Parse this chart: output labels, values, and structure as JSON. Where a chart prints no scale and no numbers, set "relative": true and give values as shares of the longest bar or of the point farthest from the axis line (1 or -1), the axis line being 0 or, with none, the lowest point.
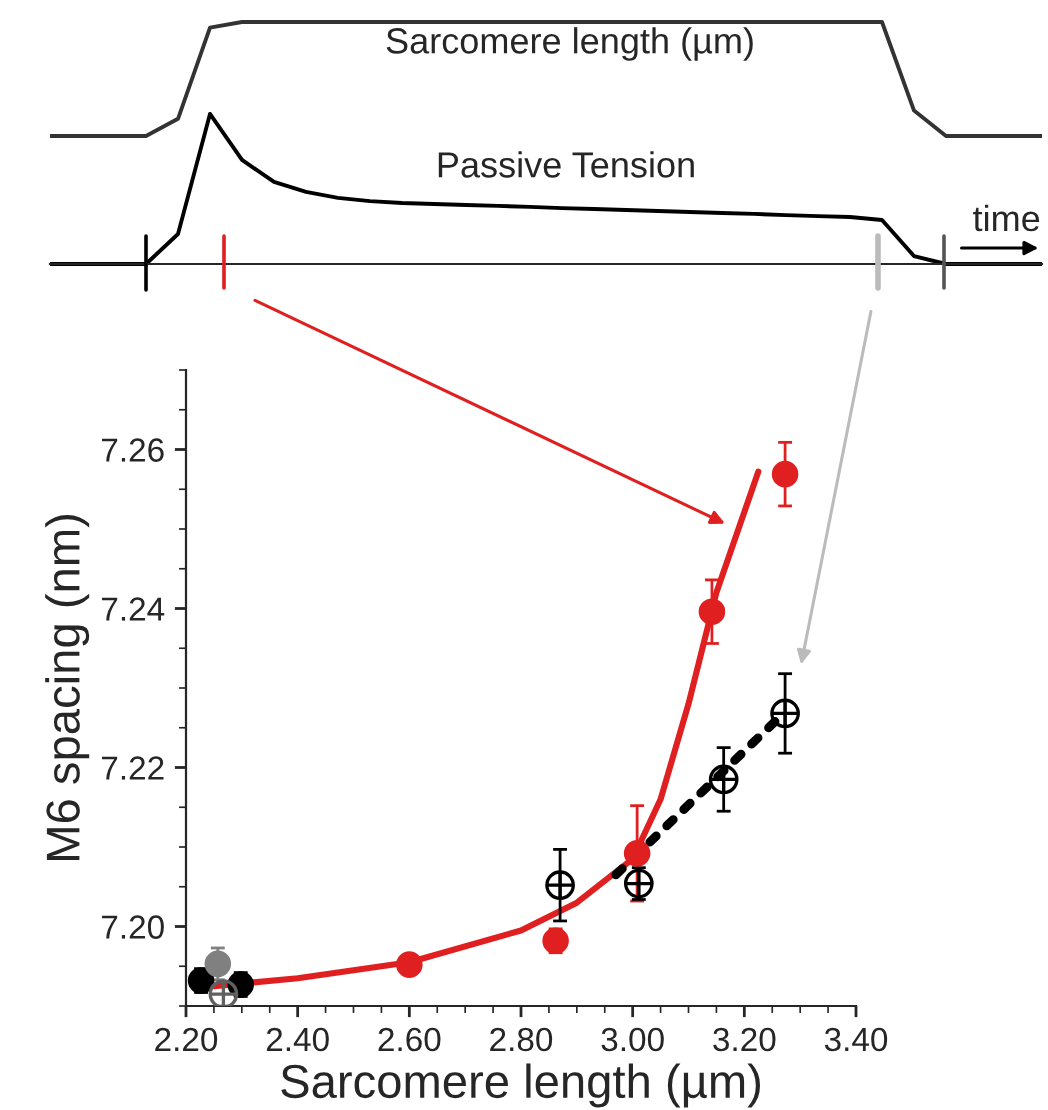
{
  "chart_data": [
    {
      "type": "line",
      "relative": true,
      "xlabel": "time",
      "grid": false,
      "legend": false,
      "categories": [
        null,
        null,
        null,
        null,
        null,
        null,
        null,
        null,
        null,
        null,
        null,
        null,
        null,
        null,
        null,
        null,
        null,
        null,
        null,
        null,
        null,
        null,
        null,
        null,
        null,
        null,
        null,
        null,
        null,
        null,
        null,
        null
      ],
      "series": [
        {
          "name": "Sarcomere length (µm)",
          "color": "#333333",
          "values": [
            0.529,
            0.529,
            0.529,
            0.529,
            0.6,
            0.977,
            1,
            1,
            1,
            1,
            1,
            1,
            1,
            1,
            1,
            1,
            1,
            1,
            1,
            1,
            1,
            1,
            1,
            1,
            1,
            1,
            1,
            0.634,
            0.529,
            0.529,
            0.529,
            0.529
          ]
        },
        {
          "name": "Passive Tension",
          "color": "#000000",
          "values": [
            0,
            0,
            0,
            0,
            0.124,
            0.62,
            0.43,
            0.339,
            0.298,
            0.273,
            0.26,
            0.252,
            0.248,
            0.244,
            0.24,
            0.236,
            0.231,
            0.227,
            0.223,
            0.219,
            0.215,
            0.211,
            0.207,
            0.202,
            0.198,
            0.194,
            0.182,
            0.033,
            0,
            0,
            0,
            0
          ]
        }
      ]
    },
    {
      "type": "scatter",
      "xlabel": "Sarcomere length (µm)",
      "ylabel": "M6 spacing (nm)",
      "xlim": [
        2.2,
        3.4
      ],
      "xticks": [
        {
          "value": 2.2,
          "label": "2.20"
        },
        {
          "value": 2.4,
          "label": "2.40"
        },
        {
          "value": 2.6,
          "label": "2.60"
        },
        {
          "value": 2.8,
          "label": "2.80"
        },
        {
          "value": 3.0,
          "label": "3.00"
        },
        {
          "value": 3.2,
          "label": "3.20"
        },
        {
          "value": 3.4,
          "label": "3.40"
        }
      ],
      "ylim": [
        7.19,
        7.27
      ],
      "yticks": [
        {
          "value": 7.2,
          "label": "7.20"
        },
        {
          "value": 7.22,
          "label": "7.22"
        },
        {
          "value": 7.24,
          "label": "7.24"
        },
        {
          "value": 7.26,
          "label": "7.26"
        }
      ],
      "grid": false,
      "legend": false,
      "series": [
        {
          "type": "line",
          "color": "#e02020",
          "line_style": "solid",
          "marker": "none",
          "x": [
            2.25,
            2.4,
            2.6,
            2.8,
            2.9,
            3.0,
            3.05,
            3.1,
            3.15,
            3.225
          ],
          "values": [
            7.1925,
            7.1935,
            7.1955,
            7.1995,
            7.203,
            7.2085,
            7.216,
            7.228,
            7.242,
            7.2572
          ]
        },
        {
          "type": "line",
          "color": "#000000",
          "line_style": "dotted",
          "marker": "none",
          "x": [
            2.97,
            3.27
          ],
          "values": [
            7.2065,
            7.2268
          ]
        },
        {
          "color": "#e02020",
          "marker": "circle",
          "x": [
            2.6,
            2.862,
            3.008,
            3.142,
            3.273
          ],
          "values": [
            7.1952,
            7.1982,
            7.2092,
            7.2396,
            7.2569
          ],
          "errors": [
            0.001,
            0.0015,
            0.006,
            0.004,
            0.004
          ]
        },
        {
          "color": "#000000",
          "marker": "cross",
          "x": [
            2.87,
            3.011,
            3.163,
            3.273
          ],
          "values": [
            7.2052,
            7.2054,
            7.2185,
            7.2268
          ],
          "errors": [
            0.0045,
            0.002,
            0.004,
            0.005
          ]
        },
        {
          "color": "#000000",
          "marker": "circle",
          "x": [
            2.227,
            2.298
          ],
          "values": [
            7.1932,
            7.1927
          ],
          "errors": [
            0.0015,
            0.0015
          ]
        },
        {
          "color": "#808080",
          "marker": "circle",
          "x": [
            2.257
          ],
          "values": [
            7.1953
          ],
          "errors": [
            0.002
          ]
        },
        {
          "color": "#606060",
          "marker": "cross",
          "x": [
            2.267
          ],
          "values": [
            7.1915
          ],
          "errors": [
            0.0015
          ]
        }
      ]
    }
  ]
}
